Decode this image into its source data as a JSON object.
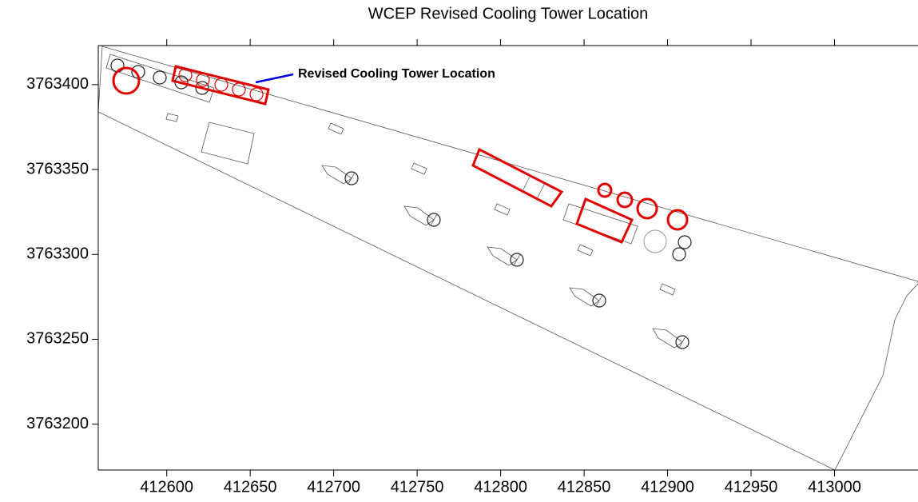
{
  "chart_data": {
    "type": "map",
    "title": "WCEP Revised Cooling Tower Location",
    "annotation": "Revised Cooling Tower Location",
    "xlim": [
      412559,
      413050
    ],
    "ylim": [
      3763173,
      3763423
    ],
    "xticks": [
      412600,
      412650,
      412700,
      412750,
      412800,
      412850,
      412900,
      412950,
      413000
    ],
    "yticks": [
      3763200,
      3763250,
      3763300,
      3763350,
      3763400
    ]
  }
}
